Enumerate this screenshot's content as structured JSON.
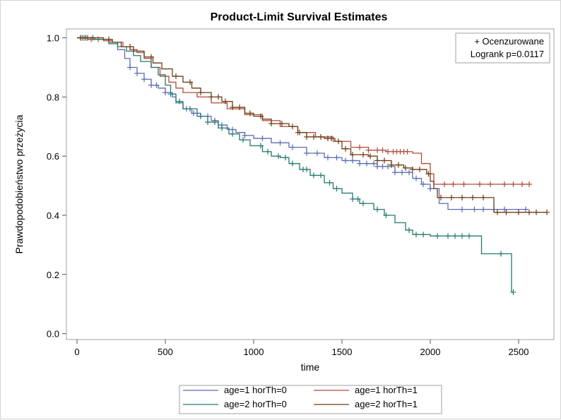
{
  "chart_data": {
    "type": "line",
    "title": "Product-Limit Survival Estimates",
    "xlabel": "time",
    "ylabel": "Prawdopodobieństwo przeżycia",
    "xlim": [
      -60,
      2700
    ],
    "ylim": [
      -0.02,
      1.03
    ],
    "xticks": [
      0,
      500,
      1000,
      1500,
      2000,
      2500
    ],
    "yticks": [
      0.0,
      0.2,
      0.4,
      0.6,
      0.8,
      1.0
    ],
    "ytick_labels": [
      "0.0",
      "0.2",
      "0.4",
      "0.6",
      "0.8",
      "1.0"
    ],
    "grid": false,
    "inset": {
      "censor_label": "+ Ocenzurowane",
      "test_label": "Logrank p=0.0117"
    },
    "legend_position": "bottom",
    "series": [
      {
        "name": "age=1 horTh=0",
        "color": "#5b6bb5",
        "points": [
          [
            0,
            1.0
          ],
          [
            100,
            0.995
          ],
          [
            180,
            0.985
          ],
          [
            230,
            0.96
          ],
          [
            270,
            0.93
          ],
          [
            300,
            0.9
          ],
          [
            340,
            0.88
          ],
          [
            380,
            0.86
          ],
          [
            420,
            0.84
          ],
          [
            460,
            0.83
          ],
          [
            500,
            0.815
          ],
          [
            540,
            0.8
          ],
          [
            560,
            0.78
          ],
          [
            600,
            0.76
          ],
          [
            650,
            0.745
          ],
          [
            700,
            0.735
          ],
          [
            760,
            0.72
          ],
          [
            800,
            0.705
          ],
          [
            850,
            0.69
          ],
          [
            900,
            0.68
          ],
          [
            950,
            0.67
          ],
          [
            1000,
            0.66
          ],
          [
            1100,
            0.645
          ],
          [
            1200,
            0.63
          ],
          [
            1300,
            0.61
          ],
          [
            1400,
            0.595
          ],
          [
            1500,
            0.585
          ],
          [
            1600,
            0.575
          ],
          [
            1700,
            0.565
          ],
          [
            1800,
            0.545
          ],
          [
            1900,
            0.525
          ],
          [
            1950,
            0.505
          ],
          [
            2000,
            0.49
          ],
          [
            2050,
            0.44
          ],
          [
            2100,
            0.42
          ],
          [
            2550,
            0.42
          ]
        ],
        "censor_times": [
          20,
          40,
          60,
          300,
          340,
          380,
          420,
          450,
          500,
          620,
          660,
          700,
          740,
          780,
          820,
          880,
          950,
          1050,
          1150,
          1220,
          1300,
          1360,
          1420,
          1470,
          1520,
          1560,
          1600,
          1640,
          1680,
          1700,
          1730,
          1760,
          1800,
          1840,
          1880,
          1920,
          1960,
          2000,
          2180,
          2250,
          2300,
          2360,
          2420,
          2540
        ]
      },
      {
        "name": "age=1 horTh=1",
        "color": "#b34a3a",
        "points": [
          [
            0,
            1.0
          ],
          [
            60,
            0.995
          ],
          [
            150,
            0.99
          ],
          [
            200,
            0.985
          ],
          [
            260,
            0.97
          ],
          [
            300,
            0.96
          ],
          [
            340,
            0.95
          ],
          [
            380,
            0.93
          ],
          [
            420,
            0.9
          ],
          [
            470,
            0.87
          ],
          [
            520,
            0.85
          ],
          [
            560,
            0.83
          ],
          [
            600,
            0.815
          ],
          [
            680,
            0.8
          ],
          [
            760,
            0.78
          ],
          [
            850,
            0.76
          ],
          [
            950,
            0.74
          ],
          [
            1050,
            0.72
          ],
          [
            1150,
            0.7
          ],
          [
            1250,
            0.68
          ],
          [
            1350,
            0.665
          ],
          [
            1450,
            0.65
          ],
          [
            1550,
            0.63
          ],
          [
            1650,
            0.62
          ],
          [
            1750,
            0.615
          ],
          [
            1900,
            0.61
          ],
          [
            1950,
            0.575
          ],
          [
            2000,
            0.54
          ],
          [
            2020,
            0.505
          ],
          [
            2560,
            0.505
          ]
        ],
        "censor_times": [
          40,
          80,
          120,
          1250,
          1600,
          1650,
          1700,
          1730,
          1760,
          1790,
          1810,
          1830,
          1850,
          1870,
          2080,
          2130,
          2190,
          2280,
          2340,
          2420,
          2470,
          2520,
          2560
        ]
      },
      {
        "name": "age=2 horTh=0",
        "color": "#237a6e",
        "points": [
          [
            0,
            1.0
          ],
          [
            100,
            0.995
          ],
          [
            180,
            0.98
          ],
          [
            230,
            0.97
          ],
          [
            280,
            0.955
          ],
          [
            320,
            0.94
          ],
          [
            360,
            0.92
          ],
          [
            420,
            0.9
          ],
          [
            460,
            0.875
          ],
          [
            500,
            0.84
          ],
          [
            530,
            0.81
          ],
          [
            560,
            0.785
          ],
          [
            600,
            0.76
          ],
          [
            680,
            0.735
          ],
          [
            740,
            0.715
          ],
          [
            800,
            0.695
          ],
          [
            860,
            0.675
          ],
          [
            920,
            0.655
          ],
          [
            980,
            0.635
          ],
          [
            1050,
            0.615
          ],
          [
            1100,
            0.6
          ],
          [
            1150,
            0.595
          ],
          [
            1200,
            0.575
          ],
          [
            1260,
            0.555
          ],
          [
            1320,
            0.535
          ],
          [
            1400,
            0.51
          ],
          [
            1450,
            0.49
          ],
          [
            1500,
            0.475
          ],
          [
            1560,
            0.455
          ],
          [
            1600,
            0.44
          ],
          [
            1680,
            0.42
          ],
          [
            1740,
            0.4
          ],
          [
            1800,
            0.375
          ],
          [
            1860,
            0.35
          ],
          [
            1900,
            0.335
          ],
          [
            2000,
            0.33
          ],
          [
            2150,
            0.33
          ],
          [
            2280,
            0.33
          ],
          [
            2290,
            0.27
          ],
          [
            2440,
            0.27
          ],
          [
            2460,
            0.14
          ],
          [
            2470,
            0.14
          ]
        ],
        "censor_times": [
          30,
          60,
          90,
          530,
          580,
          640,
          700,
          740,
          780,
          820,
          880,
          940,
          1040,
          1080,
          1140,
          1180,
          1220,
          1280,
          1300,
          1340,
          1380,
          1430,
          1470,
          1560,
          1590,
          1620,
          1700,
          1750,
          1880,
          1920,
          1960,
          2040,
          2100,
          2140,
          2180,
          2220,
          2400,
          2470
        ]
      },
      {
        "name": "age=2 horTh=1",
        "color": "#6b3d16",
        "points": [
          [
            0,
            1.0
          ],
          [
            150,
            0.995
          ],
          [
            200,
            0.985
          ],
          [
            250,
            0.97
          ],
          [
            320,
            0.955
          ],
          [
            380,
            0.935
          ],
          [
            430,
            0.915
          ],
          [
            480,
            0.895
          ],
          [
            540,
            0.87
          ],
          [
            600,
            0.85
          ],
          [
            650,
            0.83
          ],
          [
            700,
            0.815
          ],
          [
            760,
            0.8
          ],
          [
            820,
            0.785
          ],
          [
            880,
            0.765
          ],
          [
            950,
            0.745
          ],
          [
            1000,
            0.735
          ],
          [
            1050,
            0.725
          ],
          [
            1100,
            0.71
          ],
          [
            1200,
            0.7
          ],
          [
            1250,
            0.68
          ],
          [
            1300,
            0.665
          ],
          [
            1400,
            0.66
          ],
          [
            1460,
            0.65
          ],
          [
            1500,
            0.625
          ],
          [
            1550,
            0.605
          ],
          [
            1650,
            0.6
          ],
          [
            1700,
            0.585
          ],
          [
            1780,
            0.57
          ],
          [
            1850,
            0.56
          ],
          [
            1900,
            0.555
          ],
          [
            1980,
            0.54
          ],
          [
            2000,
            0.515
          ],
          [
            2020,
            0.49
          ],
          [
            2040,
            0.46
          ],
          [
            2350,
            0.46
          ],
          [
            2360,
            0.41
          ],
          [
            2660,
            0.41
          ]
        ],
        "censor_times": [
          20,
          50,
          180,
          300,
          420,
          560,
          640,
          700,
          760,
          800,
          840,
          880,
          920,
          980,
          1040,
          1100,
          1160,
          1220,
          1260,
          1300,
          1340,
          1380,
          1420,
          1440,
          1480,
          1520,
          1560,
          1620,
          1660,
          1700,
          1740,
          1780,
          1820,
          1860,
          1900,
          1940,
          1990,
          2060,
          2120,
          2180,
          2240,
          2300,
          2380,
          2430,
          2500,
          2560,
          2600,
          2660
        ]
      }
    ]
  }
}
